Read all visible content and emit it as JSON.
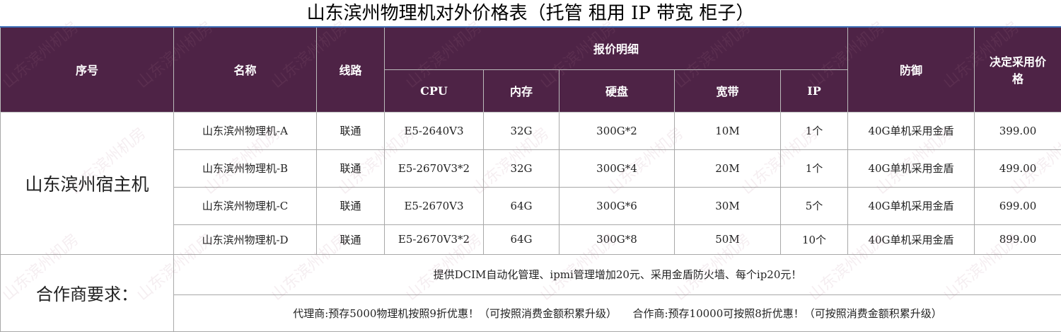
{
  "title": "山东滨州物理机对外价格表（托管 租用 IP 带宽 柜子）",
  "watermark": "山东滨州机房",
  "table": {
    "header": {
      "index": "序号",
      "name": "名称",
      "line": "线路",
      "quote": "报价明细",
      "sub": [
        "CPU",
        "内存",
        "硬盘",
        "宽带",
        "IP"
      ],
      "defense": "防御",
      "price": "决定采用价格"
    },
    "group": "山东滨州宿主机",
    "rows": [
      [
        "山东滨州物理机-A",
        "联通",
        "E5-2640V3",
        "32G",
        "300G*2",
        "10M",
        "1个",
        "40G单机采用金盾",
        "399.00"
      ],
      [
        "山东滨州物理机-B",
        "联通",
        "E5-2670V3*2",
        "32G",
        "300G*4",
        "20M",
        "1个",
        "40G单机采用金盾",
        "499.00"
      ],
      [
        "山东滨州物理机-C",
        "联通",
        "E5-2670V3",
        "64G",
        "300G*6",
        "30M",
        "5个",
        "40G单机采用金盾",
        "699.00"
      ],
      [
        "山东滨州物理机-D",
        "联通",
        "E5-2670V3*2",
        "64G",
        "300G*8",
        "50M",
        "10个",
        "40G单机采用金盾",
        "899.00"
      ]
    ],
    "partner": {
      "label": "合作商要求：",
      "lines": [
        "提供DCIM自动化管理、ipmi管理增加20元、采用金盾防火墙、每个ip20元！",
        "代理商:预存5000物理机按照9折优惠！（可按照消费金额积累升级）　　合作商:预存10000可按照8折优惠！（可按照消费金额积累升级）"
      ]
    }
  }
}
